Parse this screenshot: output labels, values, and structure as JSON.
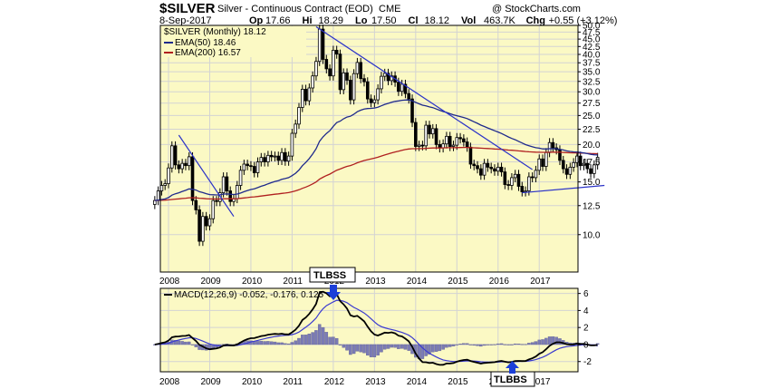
{
  "header": {
    "symbol": "$SILVER",
    "name": "Silver - Continuous Contract (EOD)",
    "exchange": "CME",
    "credit": "@ StockCharts.com",
    "date": "8-Sep-2017",
    "quote": [
      {
        "k": "Op",
        "v": "17.66"
      },
      {
        "k": "Hi",
        "v": "18.29"
      },
      {
        "k": "Lo",
        "v": "17.50"
      },
      {
        "k": "Cl",
        "v": "18.12"
      },
      {
        "k": "Vol",
        "v": "463.7K"
      },
      {
        "k": "Chg",
        "v": "+0.55 (+3.12%)"
      }
    ]
  },
  "legend": {
    "price": "$SILVER (Monthly) 18.12",
    "ema50": "EMA(50) 18.46",
    "ema200": "EMA(200) 16.57",
    "macd": "MACD(12,26,9) -0.052, -0.176, 0.125"
  },
  "annotations": {
    "top": "TLBSS",
    "bottom": "TLBBS"
  },
  "colors": {
    "panel_bg": "#fbf9c4",
    "grid": "#d3d3d3",
    "candle": "#000000",
    "ema50": "#1f2a8c",
    "ema200": "#b02020",
    "trendline": "#2b33c8",
    "hist": "#7b7bb5",
    "signal": "#3a3ad0",
    "annotation_arrow": "#1c3fd8"
  },
  "chart_data": [
    {
      "type": "candlestick",
      "title": "$SILVER (Monthly) 18.12",
      "scale": "log",
      "x_tick_labels": [
        "2008",
        "2009",
        "2010",
        "2011",
        "2012",
        "2013",
        "2014",
        "2015",
        "2016",
        "2017"
      ],
      "y_tick_labels": [
        "10.0",
        "12.5",
        "15.0",
        "17.5",
        "20.0",
        "22.5",
        "25.0",
        "27.5",
        "30.0",
        "32.5",
        "35.0",
        "37.5",
        "40.0",
        "42.5",
        "45.0",
        "47.5",
        "50.0"
      ],
      "ylim": [
        7.5,
        50
      ],
      "grid": true,
      "legend_position": "top-left",
      "start_month": "2007-09",
      "closes": [
        13.0,
        14.0,
        14.6,
        14.8,
        16.7,
        19.8,
        17.1,
        16.6,
        17.3,
        17.0,
        18.2,
        13.0,
        12.1,
        9.5,
        11.5,
        10.7,
        11.3,
        13.0,
        12.9,
        13.8,
        15.6,
        14.0,
        12.9,
        13.2,
        14.6,
        16.4,
        17.2,
        17.0,
        16.9,
        16.1,
        17.5,
        18.1,
        17.5,
        18.4,
        18.2,
        18.3,
        17.7,
        18.8,
        17.6,
        18.3,
        21.8,
        23.4,
        26.6,
        30.6,
        28.0,
        30.9,
        33.9,
        37.9,
        48.6,
        38.5,
        35.8,
        33.9,
        41.3,
        40.1,
        30.5,
        34.7,
        32.8,
        28.2,
        34.5,
        37.6,
        33.2,
        32.4,
        28.4,
        27.6,
        28.2,
        30.7,
        33.8,
        34.6,
        32.7,
        33.9,
        32.3,
        30.1,
        31.8,
        29.6,
        28.4,
        23.7,
        19.7,
        19.9,
        19.8,
        23.2,
        21.7,
        22.6,
        20.0,
        19.5,
        20.1,
        21.3,
        19.7,
        19.9,
        21.1,
        20.9,
        20.4,
        19.6,
        17.2,
        17.0,
        16.6,
        15.8,
        17.3,
        16.8,
        16.6,
        16.3,
        16.8,
        16.2,
        14.7,
        14.6,
        15.5,
        15.9,
        14.5,
        13.9,
        14.0,
        15.6,
        15.5,
        16.4,
        17.9,
        16.9,
        18.8,
        20.3,
        19.5,
        19.2,
        17.7,
        16.6,
        15.9,
        16.8,
        17.4,
        18.3,
        17.0,
        17.3,
        16.6,
        16.0,
        17.1,
        18.12
      ],
      "series": [
        {
          "name": "EMA(50)",
          "values": [
            13.0,
            13.04,
            13.1,
            13.16,
            13.3,
            13.55,
            13.69,
            13.8,
            13.94,
            14.06,
            14.22,
            14.17,
            14.09,
            13.91,
            13.82,
            13.7,
            13.61,
            13.59,
            13.57,
            13.58,
            13.66,
            13.67,
            13.64,
            13.62,
            13.66,
            13.77,
            13.91,
            14.04,
            14.15,
            14.23,
            14.36,
            14.51,
            14.63,
            14.78,
            14.92,
            15.05,
            15.15,
            15.3,
            15.39,
            15.5,
            15.74,
            16.03,
            16.44,
            17.0,
            17.43,
            17.96,
            18.59,
            19.35,
            20.5,
            21.2,
            21.77,
            22.25,
            23.0,
            23.67,
            23.94,
            24.37,
            24.71,
            24.85,
            25.24,
            25.74,
            26.04,
            26.29,
            26.37,
            26.42,
            26.49,
            26.65,
            26.93,
            27.23,
            27.44,
            27.69,
            27.87,
            27.96,
            28.11,
            28.17,
            28.18,
            27.99,
            27.66,
            27.35,
            27.06,
            26.91,
            26.71,
            26.56,
            26.29,
            26.02,
            25.78,
            25.59,
            25.35,
            25.13,
            24.96,
            24.79,
            24.61,
            24.41,
            24.12,
            23.83,
            23.54,
            23.22,
            22.98,
            22.72,
            22.48,
            22.23,
            22.01,
            21.77,
            21.48,
            21.2,
            20.96,
            20.75,
            20.49,
            20.23,
            19.98,
            19.81,
            19.65,
            19.52,
            19.45,
            19.34,
            19.32,
            19.36,
            19.37,
            19.36,
            19.29,
            19.18,
            19.05,
            18.96,
            18.9,
            18.87,
            18.8,
            18.74,
            18.65,
            18.54,
            18.48,
            18.46
          ]
        },
        {
          "name": "EMA(200)",
          "values": [
            13.0,
            13.01,
            13.02,
            13.04,
            13.07,
            13.1,
            13.14,
            13.17,
            13.2,
            13.23,
            13.28,
            13.28,
            13.27,
            13.23,
            13.21,
            13.18,
            13.16,
            13.16,
            13.15,
            13.16,
            13.18,
            13.19,
            13.18,
            13.18,
            13.19,
            13.22,
            13.26,
            13.3,
            13.34,
            13.37,
            13.41,
            13.46,
            13.5,
            13.55,
            13.6,
            13.64,
            13.68,
            13.73,
            13.77,
            13.82,
            13.9,
            14.0,
            14.12,
            14.28,
            14.42,
            14.58,
            14.77,
            14.99,
            15.32,
            15.55,
            15.75,
            15.93,
            16.18,
            16.42,
            16.56,
            16.74,
            16.9,
            17.01,
            17.18,
            17.38,
            17.54,
            17.69,
            17.8,
            17.9,
            18.01,
            18.14,
            18.3,
            18.46,
            18.6,
            18.76,
            18.89,
            19.0,
            19.13,
            19.24,
            19.33,
            19.37,
            19.37,
            19.38,
            19.38,
            19.42,
            19.44,
            19.47,
            19.48,
            19.48,
            19.49,
            19.51,
            19.51,
            19.52,
            19.53,
            19.54,
            19.55,
            19.56,
            19.53,
            19.5,
            19.48,
            19.44,
            19.42,
            19.39,
            19.36,
            19.33,
            19.3,
            19.27,
            19.22,
            19.17,
            19.13,
            19.1,
            19.05,
            19.0,
            18.95,
            18.91,
            18.88,
            18.86,
            18.85,
            18.83,
            18.83,
            18.85,
            18.86,
            18.86,
            18.85,
            18.82,
            18.79,
            18.77,
            18.76,
            18.75,
            18.73,
            18.71,
            18.69,
            18.66,
            18.65,
            18.64
          ]
        }
      ]
    },
    {
      "type": "line",
      "title": "MACD(12,26,9) -0.052, -0.176, 0.125",
      "x_tick_labels": [
        "2008",
        "2009",
        "2010",
        "2011",
        "2012",
        "2013",
        "2014",
        "2015",
        "2016",
        "2017"
      ],
      "y_tick_labels": [
        "6",
        "4",
        "2",
        "0",
        "-2"
      ],
      "ylim": [
        -3.2,
        6.6
      ],
      "grid": true,
      "legend_position": "top-left",
      "series": [
        {
          "name": "MACD",
          "values": [
            0.0,
            0.08,
            0.18,
            0.26,
            0.46,
            0.85,
            0.93,
            0.95,
            1.01,
            1.02,
            1.11,
            0.76,
            0.42,
            -0.04,
            -0.24,
            -0.45,
            -0.56,
            -0.5,
            -0.46,
            -0.35,
            -0.12,
            -0.06,
            -0.1,
            -0.11,
            0.01,
            0.24,
            0.47,
            0.63,
            0.74,
            0.75,
            0.87,
            1.0,
            1.05,
            1.16,
            1.21,
            1.25,
            1.22,
            1.27,
            1.2,
            1.19,
            1.43,
            1.74,
            2.21,
            2.88,
            3.18,
            3.61,
            4.13,
            4.77,
            6.08,
            6.21,
            6.02,
            5.66,
            5.9,
            5.93,
            5.1,
            4.73,
            4.24,
            3.45,
            3.29,
            3.37,
            3.06,
            2.72,
            2.11,
            1.55,
            1.17,
            1.06,
            1.22,
            1.4,
            1.37,
            1.43,
            1.32,
            1.04,
            0.95,
            0.69,
            0.38,
            -0.26,
            -1.06,
            -1.65,
            -2.07,
            -2.08,
            -2.17,
            -2.14,
            -2.29,
            -2.39,
            -2.38,
            -2.23,
            -2.22,
            -2.18,
            -2.02,
            -1.9,
            -1.81,
            -1.78,
            -1.93,
            -2.04,
            -2.13,
            -2.24,
            -2.17,
            -2.13,
            -2.1,
            -2.07,
            -1.97,
            -1.92,
            -2.02,
            -2.09,
            -2.04,
            -1.93,
            -1.92,
            -1.94,
            -1.93,
            -1.75,
            -1.61,
            -1.41,
            -1.09,
            -0.9,
            -0.55,
            -0.15,
            0.1,
            0.26,
            0.26,
            0.17,
            0.04,
            0.0,
            0.02,
            0.11,
            0.08,
            0.07,
            0.0,
            -0.1,
            -0.1,
            -0.052
          ]
        },
        {
          "name": "Signal",
          "values": [
            0.0,
            0.02,
            0.05,
            0.09,
            0.16,
            0.3,
            0.43,
            0.53,
            0.63,
            0.71,
            0.79,
            0.79,
            0.71,
            0.56,
            0.4,
            0.23,
            0.07,
            -0.04,
            -0.13,
            -0.17,
            -0.16,
            -0.14,
            -0.13,
            -0.12,
            -0.1,
            -0.03,
            0.07,
            0.18,
            0.3,
            0.39,
            0.49,
            0.59,
            0.68,
            0.78,
            0.86,
            0.94,
            1.0,
            1.05,
            1.08,
            1.1,
            1.17,
            1.28,
            1.47,
            1.75,
            2.04,
            2.35,
            2.7,
            3.11,
            3.7,
            4.2,
            4.57,
            4.79,
            5.01,
            5.2,
            5.18,
            5.09,
            4.92,
            4.63,
            4.36,
            4.16,
            3.94,
            3.7,
            3.38,
            3.02,
            2.65,
            2.33,
            2.11,
            1.97,
            1.85,
            1.76,
            1.67,
            1.54,
            1.42,
            1.27,
            1.09,
            0.82,
            0.44,
            0.02,
            -0.4,
            -0.74,
            -1.03,
            -1.25,
            -1.46,
            -1.65,
            -1.8,
            -1.89,
            -1.95,
            -2.0,
            -2.0,
            -1.98,
            -1.95,
            -1.91,
            -1.92,
            -1.94,
            -1.98,
            -2.03,
            -2.06,
            -2.07,
            -2.08,
            -2.08,
            -2.06,
            -2.03,
            -2.03,
            -2.04,
            -2.04,
            -2.02,
            -2.0,
            -1.98,
            -1.97,
            -1.92,
            -1.86,
            -1.77,
            -1.63,
            -1.49,
            -1.3,
            -1.07,
            -0.83,
            -0.61,
            -0.44,
            -0.32,
            -0.25,
            -0.2,
            -0.15,
            -0.1,
            -0.06,
            -0.03,
            -0.02,
            -0.04,
            -0.05,
            -0.176
          ]
        },
        {
          "name": "Histogram",
          "values": [
            0.0,
            0.06,
            0.13,
            0.17,
            0.3,
            0.55,
            0.5,
            0.42,
            0.38,
            0.31,
            0.32,
            -0.03,
            -0.29,
            -0.6,
            -0.64,
            -0.68,
            -0.63,
            -0.46,
            -0.33,
            -0.18,
            0.04,
            0.08,
            0.03,
            0.01,
            0.11,
            0.27,
            0.4,
            0.45,
            0.44,
            0.36,
            0.38,
            0.41,
            0.37,
            0.38,
            0.35,
            0.31,
            0.22,
            0.22,
            0.12,
            0.09,
            0.26,
            0.46,
            0.74,
            1.13,
            1.14,
            1.26,
            1.43,
            1.66,
            2.38,
            2.01,
            1.45,
            0.87,
            0.89,
            0.73,
            -0.08,
            -0.36,
            -0.68,
            -1.18,
            -1.07,
            -0.79,
            -0.88,
            -0.98,
            -1.27,
            -1.47,
            -1.48,
            -1.27,
            -0.89,
            -0.57,
            -0.48,
            -0.33,
            -0.35,
            -0.5,
            -0.47,
            -0.58,
            -0.71,
            -1.08,
            -1.5,
            -1.67,
            -1.67,
            -1.34,
            -1.14,
            -0.89,
            -0.83,
            -0.74,
            -0.58,
            -0.34,
            -0.27,
            -0.18,
            -0.02,
            0.08,
            0.14,
            0.13,
            -0.01,
            -0.1,
            -0.15,
            -0.21,
            -0.11,
            -0.06,
            -0.02,
            0.01,
            0.09,
            0.11,
            0.01,
            -0.05,
            0.0,
            0.09,
            0.08,
            0.04,
            0.04,
            0.17,
            0.25,
            0.36,
            0.54,
            0.59,
            0.75,
            0.92,
            0.93,
            0.87,
            0.7,
            0.49,
            0.29,
            0.2,
            0.17,
            0.21,
            0.14,
            0.1,
            0.02,
            -0.06,
            -0.05,
            0.125
          ]
        }
      ]
    }
  ]
}
